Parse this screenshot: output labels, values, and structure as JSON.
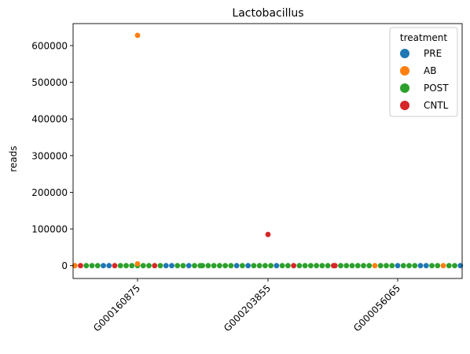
{
  "chart_data": {
    "type": "scatter",
    "title": "Lactobacillus",
    "xlabel": "",
    "ylabel": "reads",
    "categories": [
      "G000160875",
      "G000203855",
      "G000056065"
    ],
    "ylim": [
      -35000,
      660000
    ],
    "yticks": [
      0,
      100000,
      200000,
      300000,
      400000,
      500000,
      600000
    ],
    "grid": false,
    "legend": {
      "title": "treatment",
      "placement": "top-right"
    },
    "series_colors": {
      "PRE": "#1f77b4",
      "AB": "#ff7f0e",
      "POST": "#2ca02c",
      "CNTL": "#d62728"
    },
    "series_order": [
      "PRE",
      "AB",
      "POST",
      "CNTL"
    ],
    "groups": [
      {
        "category": "G000160875",
        "strip": [
          "AB",
          "CNTL",
          "POST",
          "POST",
          "POST",
          "PRE",
          "PRE",
          "CNTL",
          "POST",
          "POST",
          "POST",
          "POST",
          "POST",
          "POST",
          "CNTL",
          "POST",
          "PRE",
          "PRE",
          "POST",
          "POST",
          "PRE",
          "POST",
          "POST"
        ],
        "strip_value": 0,
        "extra": [
          {
            "treatment": "AB",
            "value": 5000
          },
          {
            "treatment": "AB",
            "value": 628000
          }
        ]
      },
      {
        "category": "G000203855",
        "strip": [
          "POST",
          "POST",
          "POST",
          "POST",
          "POST",
          "POST",
          "PRE",
          "POST",
          "PRE",
          "POST",
          "POST",
          "POST",
          "POST",
          "PRE",
          "POST",
          "POST",
          "CNTL",
          "POST",
          "POST",
          "POST",
          "POST",
          "POST",
          "POST",
          "CNTL"
        ],
        "strip_value": 0,
        "extra": [
          {
            "treatment": "CNTL",
            "value": 85000
          }
        ]
      },
      {
        "category": "G000056065",
        "strip": [
          "CNTL",
          "POST",
          "POST",
          "POST",
          "POST",
          "POST",
          "POST",
          "AB",
          "POST",
          "POST",
          "POST",
          "PRE",
          "POST",
          "POST",
          "POST",
          "PRE",
          "PRE",
          "POST",
          "POST",
          "AB",
          "POST",
          "POST",
          "PRE"
        ],
        "strip_value": 0,
        "extra": []
      }
    ]
  }
}
